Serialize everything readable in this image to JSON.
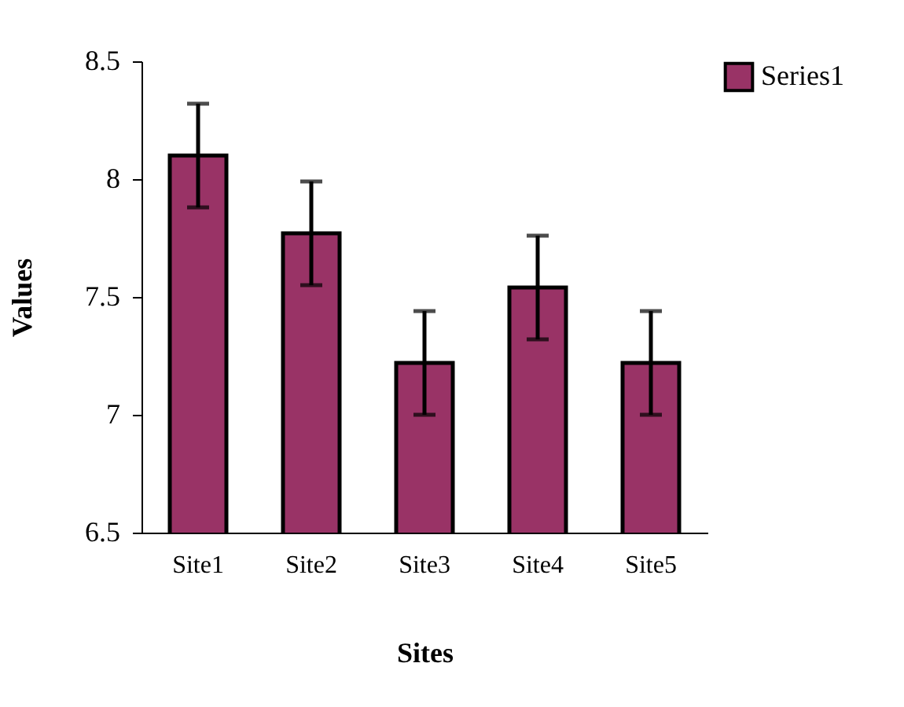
{
  "chart_data": {
    "type": "bar",
    "xlabel": "Sites",
    "ylabel": "Values",
    "categories": [
      "Site1",
      "Site2",
      "Site3",
      "Site4",
      "Site5"
    ],
    "series": [
      {
        "name": "Series1",
        "color": "#993366",
        "values": [
          8.1,
          7.77,
          7.22,
          7.54,
          7.22
        ],
        "errors": [
          0.22,
          0.22,
          0.22,
          0.22,
          0.22
        ]
      }
    ],
    "ylim": [
      6.5,
      8.5
    ],
    "yticks": [
      6.5,
      7,
      7.5,
      8,
      8.5
    ],
    "grid": false,
    "legend": "top right"
  }
}
